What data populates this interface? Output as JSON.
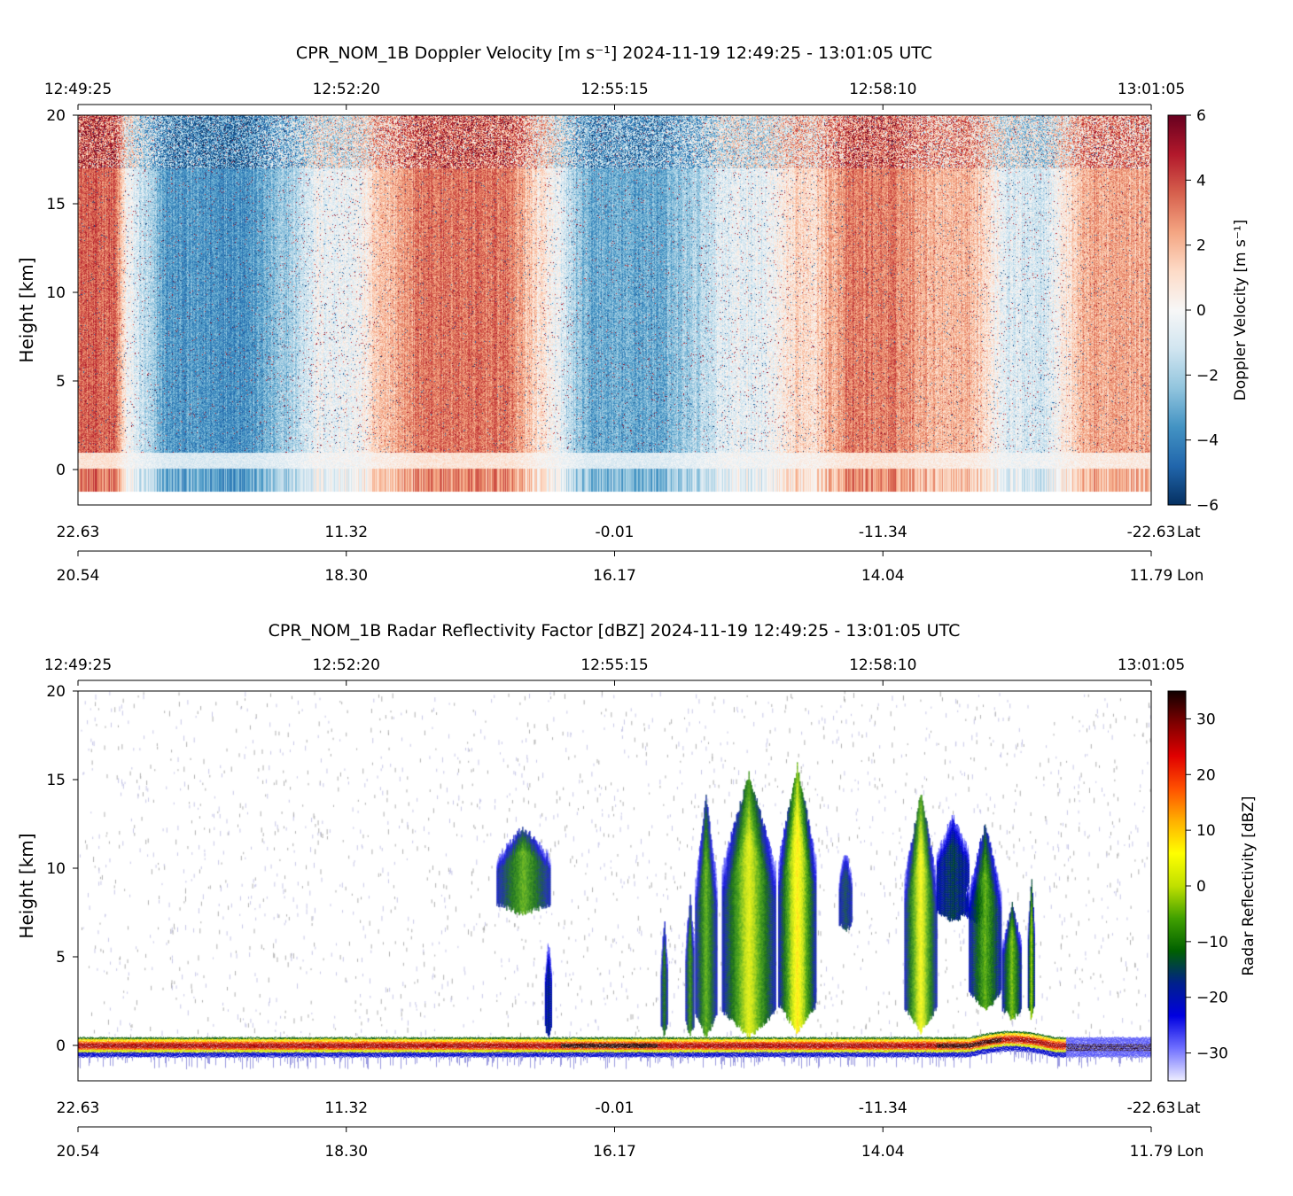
{
  "chart_data": [
    {
      "type": "heatmap",
      "title": "CPR_NOM_1B Doppler Velocity [m s⁻¹]    2024-11-19    12:49:25 - 13:01:05 UTC",
      "ylabel": "Height [km]",
      "ylim": [
        -2,
        20
      ],
      "yticks": [
        0,
        5,
        10,
        15,
        20
      ],
      "time_ticks": [
        "12:49:25",
        "12:52:20",
        "12:55:15",
        "12:58:10",
        "13:01:05"
      ],
      "lat_ticks": [
        "22.63",
        "11.32",
        "-0.01",
        "-11.34",
        "-22.63"
      ],
      "lat_label": "Lat",
      "lon_ticks": [
        "20.54",
        "18.30",
        "16.17",
        "14.04",
        "11.79"
      ],
      "lon_label": "Lon",
      "colorbar": {
        "label": "Doppler Velocity [m s⁻¹]",
        "range": [
          -6,
          6
        ],
        "ticks": [
          6,
          4,
          2,
          0,
          -2,
          -4,
          -6
        ],
        "tick_labels": [
          "6",
          "4",
          "2",
          "0",
          "−2",
          "−4",
          "−6"
        ],
        "colormap": [
          "#053061",
          "#2166ac",
          "#4393c3",
          "#92c5de",
          "#d1e5f0",
          "#f7f7f7",
          "#fddbc7",
          "#f4a582",
          "#d6604d",
          "#b2182b",
          "#67001f"
        ]
      },
      "profile_bands": [
        {
          "x0": 0.0,
          "x1": 0.045,
          "velocity": 3.5
        },
        {
          "x0": 0.045,
          "x1": 0.2,
          "velocity": -3.5
        },
        {
          "x0": 0.2,
          "x1": 0.28,
          "velocity": -0.3
        },
        {
          "x0": 0.28,
          "x1": 0.44,
          "velocity": 3.2
        },
        {
          "x0": 0.44,
          "x1": 0.58,
          "velocity": -3.0
        },
        {
          "x0": 0.58,
          "x1": 0.66,
          "velocity": -0.5
        },
        {
          "x0": 0.66,
          "x1": 0.7,
          "velocity": 1.2
        },
        {
          "x0": 0.7,
          "x1": 0.78,
          "velocity": 3.0
        },
        {
          "x0": 0.78,
          "x1": 0.85,
          "velocity": 2.0
        },
        {
          "x0": 0.85,
          "x1": 0.92,
          "velocity": -0.8
        },
        {
          "x0": 0.92,
          "x1": 1.0,
          "velocity": 2.2
        }
      ]
    },
    {
      "type": "heatmap",
      "title": "CPR_NOM_1B Radar Reflectivity Factor [dBZ]    2024-11-19    12:49:25 - 13:01:05 UTC",
      "ylabel": "Height [km]",
      "ylim": [
        -2,
        20
      ],
      "yticks": [
        0,
        5,
        10,
        15,
        20
      ],
      "time_ticks": [
        "12:49:25",
        "12:52:20",
        "12:55:15",
        "12:58:10",
        "13:01:05"
      ],
      "lat_ticks": [
        "22.63",
        "11.32",
        "-0.01",
        "-11.34",
        "-22.63"
      ],
      "lat_label": "Lat",
      "lon_ticks": [
        "20.54",
        "18.30",
        "16.17",
        "14.04",
        "11.79"
      ],
      "lon_label": "Lon",
      "colorbar": {
        "label": "Radar Reflectivity [dBZ]",
        "range": [
          -35,
          35
        ],
        "ticks": [
          30,
          20,
          10,
          0,
          -10,
          -20,
          -30
        ],
        "tick_labels": [
          "30",
          "20",
          "10",
          "0",
          "−10",
          "−20",
          "−30"
        ],
        "colormap": [
          "#eeeeff",
          "#7070ff",
          "#0000e0",
          "#00208c",
          "#006000",
          "#40a000",
          "#c0e000",
          "#ffff00",
          "#ffb000",
          "#ff5000",
          "#e00000",
          "#800000",
          "#100000"
        ]
      },
      "surface_km": 0,
      "clouds": [
        {
          "x": 0.415,
          "base": 7.5,
          "top": 12.3,
          "width": 0.05,
          "dbz": -5
        },
        {
          "x": 0.438,
          "base": 0.5,
          "top": 6.0,
          "width": 0.006,
          "dbz": -18
        },
        {
          "x": 0.546,
          "base": 0.5,
          "top": 7.0,
          "width": 0.006,
          "dbz": -10
        },
        {
          "x": 0.57,
          "base": 0.5,
          "top": 8.5,
          "width": 0.008,
          "dbz": -8
        },
        {
          "x": 0.585,
          "base": 0.5,
          "top": 14.0,
          "width": 0.02,
          "dbz": -5
        },
        {
          "x": 0.625,
          "base": 0.5,
          "top": 15.3,
          "width": 0.05,
          "dbz": 3
        },
        {
          "x": 0.67,
          "base": 0.8,
          "top": 15.8,
          "width": 0.035,
          "dbz": 8
        },
        {
          "x": 0.715,
          "base": 6.5,
          "top": 11.0,
          "width": 0.012,
          "dbz": -15
        },
        {
          "x": 0.785,
          "base": 0.8,
          "top": 14.2,
          "width": 0.03,
          "dbz": 5
        },
        {
          "x": 0.815,
          "base": 7.0,
          "top": 13.0,
          "width": 0.03,
          "dbz": -15
        },
        {
          "x": 0.835,
          "base": 7.0,
          "top": 9.5,
          "width": 0.015,
          "dbz": -18
        },
        {
          "x": 0.845,
          "base": 2.0,
          "top": 12.5,
          "width": 0.03,
          "dbz": -5
        },
        {
          "x": 0.87,
          "base": 1.5,
          "top": 8.0,
          "width": 0.018,
          "dbz": -3
        },
        {
          "x": 0.888,
          "base": 1.5,
          "top": 9.5,
          "width": 0.006,
          "dbz": 0
        }
      ]
    }
  ]
}
